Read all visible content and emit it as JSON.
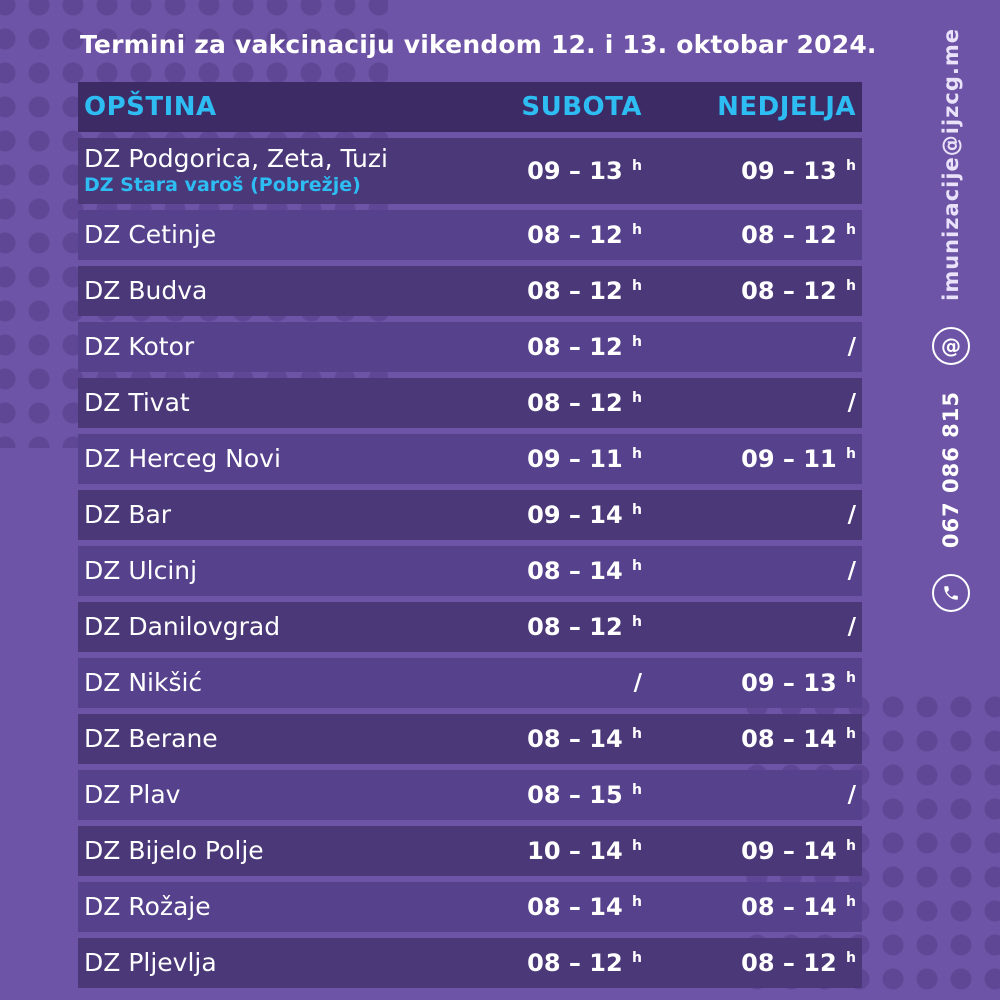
{
  "page": {
    "title_regular": "Termini za vakcinaciju vikendom ",
    "title_bold": "12. i 13. oktobar 2024."
  },
  "table": {
    "headers": {
      "opstina": "OPŠTINA",
      "subota": "SUBOTA",
      "nedjelja": "NEDJELJA"
    },
    "unit": "h",
    "no_time": "/",
    "rows": [
      {
        "name": "DZ Podgorica, Zeta, Tuzi",
        "subname": "DZ Stara varoš (Pobrežje)",
        "subota": "09 – 13",
        "nedjelja": "09 – 13"
      },
      {
        "name": "DZ Cetinje",
        "subota": "08 – 12",
        "nedjelja": "08 – 12"
      },
      {
        "name": "DZ Budva",
        "subota": "08 – 12",
        "nedjelja": "08 – 12"
      },
      {
        "name": "DZ Kotor",
        "subota": "08 – 12",
        "nedjelja": "/"
      },
      {
        "name": "DZ Tivat",
        "subota": "08 – 12",
        "nedjelja": "/"
      },
      {
        "name": "DZ Herceg Novi",
        "subota": "09 – 11",
        "nedjelja": "09 – 11"
      },
      {
        "name": "DZ Bar",
        "subota": "09 – 14",
        "nedjelja": "/"
      },
      {
        "name": "DZ Ulcinj",
        "subota": "08 – 14",
        "nedjelja": "/"
      },
      {
        "name": "DZ Danilovgrad",
        "subota": "08 – 12",
        "nedjelja": "/"
      },
      {
        "name": "DZ Nikšić",
        "subota": "/",
        "nedjelja": "09 – 13"
      },
      {
        "name": "DZ Berane",
        "subota": "08 – 14",
        "nedjelja": "08 – 14"
      },
      {
        "name": "DZ Plav",
        "subota": "08 – 15",
        "nedjelja": "/"
      },
      {
        "name": "DZ Bijelo Polje",
        "subota": "10 – 14",
        "nedjelja": "09 – 14"
      },
      {
        "name": "DZ Rožaje",
        "subota": "08 – 14",
        "nedjelja": "08 – 14"
      },
      {
        "name": "DZ Pljevlja",
        "subota": "08 – 12",
        "nedjelja": "08 – 12"
      }
    ]
  },
  "contact": {
    "email": "imunizacije@ijzcg.me",
    "phone": "067 086 815",
    "at_symbol": "@"
  },
  "colors": {
    "background": "#6d54a6",
    "header_bg": "#3d2b66",
    "row_dark": "#4a3878",
    "row_light": "#55418c",
    "accent_cyan": "#2ebdf2",
    "text_white": "#ffffff"
  }
}
